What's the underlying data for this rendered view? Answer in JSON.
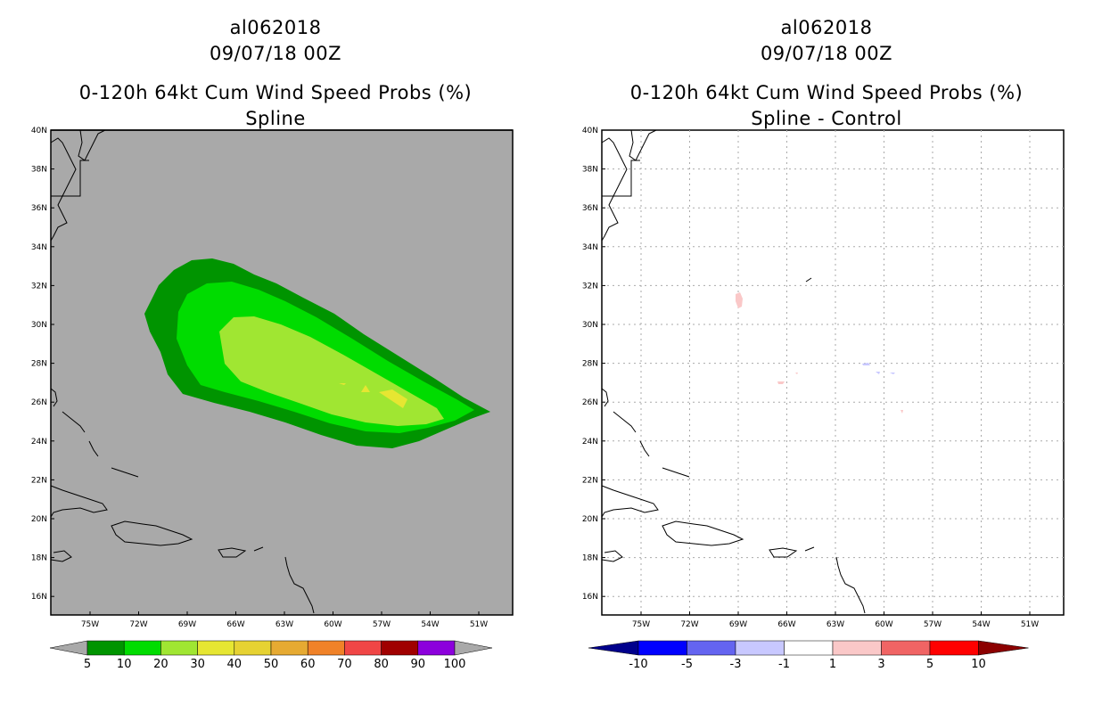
{
  "left": {
    "storm_id": "al062018",
    "datetime": "09/07/18 00Z",
    "title_line": "0-120h 64kt Cum Wind Speed Probs (%)",
    "subtitle": "Spline",
    "background_color": "#a9a9a9",
    "colorbar": {
      "labels": [
        "5",
        "10",
        "20",
        "30",
        "40",
        "50",
        "60",
        "70",
        "80",
        "90",
        "100"
      ],
      "colors": [
        "#009400",
        "#00dc00",
        "#a0e632",
        "#e6e632",
        "#e6d232",
        "#e6aa32",
        "#f08228",
        "#f04646",
        "#a00000",
        "#8c00dc"
      ],
      "end_color": "#a9a9a9"
    }
  },
  "right": {
    "storm_id": "al062018",
    "datetime": "09/07/18 00Z",
    "title_line": "0-120h 64kt Cum Wind Speed Probs (%)",
    "subtitle": "Spline - Control",
    "background_color": "#ffffff",
    "colorbar": {
      "labels": [
        "-10",
        "-5",
        "-3",
        "-1",
        "1",
        "3",
        "5",
        "10"
      ],
      "colors": [
        "#0000ff",
        "#6464f0",
        "#c8c8ff",
        "#ffffff",
        "#fac8c8",
        "#f06464",
        "#ff0000"
      ],
      "left_end_color": "#00008c",
      "right_end_color": "#8c0000"
    }
  },
  "axes": {
    "lat_labels": [
      "40N",
      "38N",
      "36N",
      "34N",
      "32N",
      "30N",
      "28N",
      "26N",
      "24N",
      "22N",
      "20N",
      "18N",
      "16N"
    ],
    "lon_labels": [
      "75W",
      "72W",
      "69W",
      "66W",
      "63W",
      "60W",
      "57W",
      "54W",
      "51W"
    ]
  }
}
